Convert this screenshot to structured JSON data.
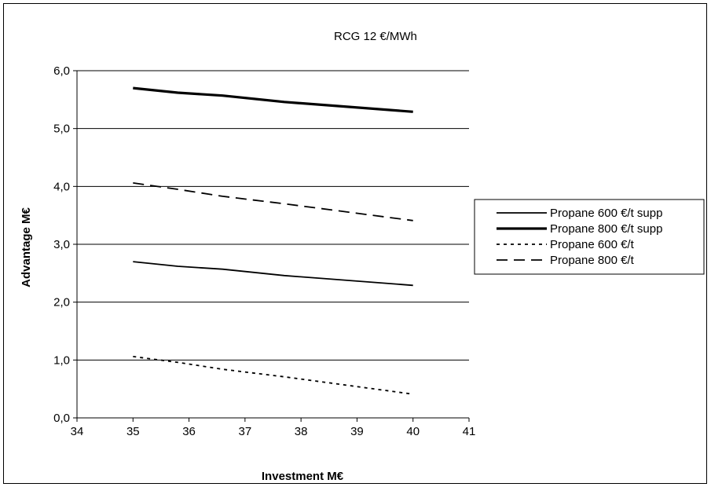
{
  "chart_data": {
    "type": "line",
    "title": "",
    "annotation": "RCG 12 €/MWh",
    "xlabel": "Investment M€",
    "ylabel": "Advantage M€",
    "xlim": [
      34,
      41
    ],
    "ylim": [
      0,
      6
    ],
    "x_ticks": [
      "34",
      "35",
      "36",
      "37",
      "38",
      "39",
      "40",
      "41"
    ],
    "y_ticks": [
      "0,0",
      "1,0",
      "2,0",
      "3,0",
      "4,0",
      "5,0",
      "6,0"
    ],
    "grid": "horizontal",
    "legend_position": "right",
    "x": [
      35,
      35.8,
      36.6,
      37.7,
      40
    ],
    "series": [
      {
        "name": "Propane 600 €/t supp",
        "style": "solid",
        "width": "normal",
        "values": [
          2.7,
          2.62,
          2.57,
          2.46,
          2.29
        ]
      },
      {
        "name": "Propane 800 €/t supp",
        "style": "solid",
        "width": "bold",
        "values": [
          5.7,
          5.62,
          5.57,
          5.46,
          5.29
        ]
      },
      {
        "name": "Propane 600 €/t",
        "style": "dotted",
        "width": "normal",
        "values": [
          1.06,
          0.96,
          0.84,
          0.71,
          0.41
        ]
      },
      {
        "name": "Propane 800 €/t",
        "style": "dashed",
        "width": "normal",
        "values": [
          4.06,
          3.95,
          3.83,
          3.7,
          3.41
        ]
      }
    ],
    "colors": {
      "line": "#000000",
      "grid": "#000000",
      "background": "#ffffff"
    }
  }
}
